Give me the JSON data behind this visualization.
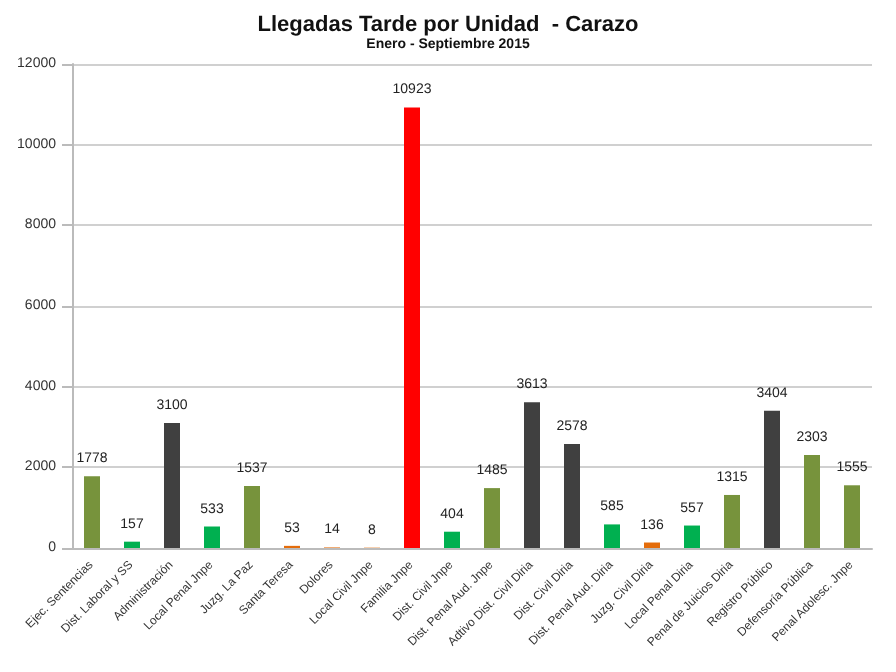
{
  "chart_data": {
    "type": "bar",
    "title": "Llegadas Tarde por Unidad  - Carazo",
    "subtitle": "Enero - Septiembre 2015",
    "categories": [
      "Ejec. Sentencias",
      "Dist. Laboral y SS",
      "Administración",
      "Local Penal Jnpe",
      "Juzg. La Paz",
      "Santa Teresa",
      "Dolores",
      "Local Civil Jnpe",
      "Familia Jnpe",
      "Dist. Civil Jnpe",
      "Dist. Penal Aud. Jnpe",
      "Adtivo Dist. Civil Diria",
      "Dist. Civil Diria",
      "Dist. Penal Aud. Diria",
      "Juzg. Civil Diria",
      "Local Penal Diria",
      "Penal de Juicios Diria",
      "Registro Público",
      "Defensoría Pública",
      "Penal Adolesc. Jnpe"
    ],
    "values": [
      1778,
      157,
      3100,
      533,
      1537,
      53,
      14,
      8,
      10923,
      404,
      1485,
      3613,
      2578,
      585,
      136,
      557,
      1315,
      3404,
      2303,
      1555
    ],
    "colors": [
      "#77933c",
      "#00b050",
      "#404040",
      "#00b050",
      "#77933c",
      "#e46c0a",
      "#e46c0a",
      "#e46c0a",
      "#ff0000",
      "#00b050",
      "#77933c",
      "#404040",
      "#404040",
      "#00b050",
      "#e46c0a",
      "#00b050",
      "#77933c",
      "#404040",
      "#77933c",
      "#77933c"
    ],
    "ylim": [
      0,
      12000
    ],
    "yticks": [
      0,
      2000,
      4000,
      6000,
      8000,
      10000,
      12000
    ],
    "grid": "y",
    "data_labels": true
  }
}
